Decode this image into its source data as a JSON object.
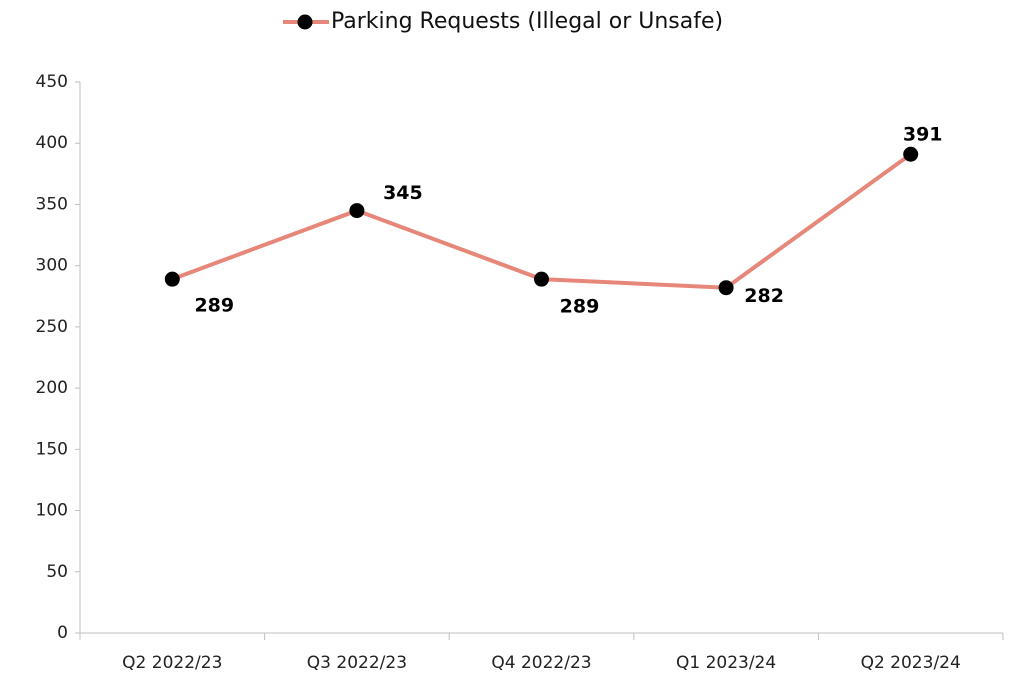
{
  "chart_data": {
    "type": "line",
    "categories": [
      "Q2 2022/23",
      "Q3 2022/23",
      "Q4 2022/23",
      "Q1 2023/24",
      "Q2 2023/24"
    ],
    "series": [
      {
        "name": "Parking Requests (Illegal or Unsafe)",
        "color": "#e6877a",
        "marker_color": "#000000",
        "values": [
          289,
          345,
          289,
          282,
          391
        ]
      }
    ],
    "ylim": [
      0,
      450
    ],
    "yticks": [
      0,
      50,
      100,
      150,
      200,
      250,
      300,
      350,
      400,
      450
    ],
    "grid": false,
    "legend": "top"
  }
}
